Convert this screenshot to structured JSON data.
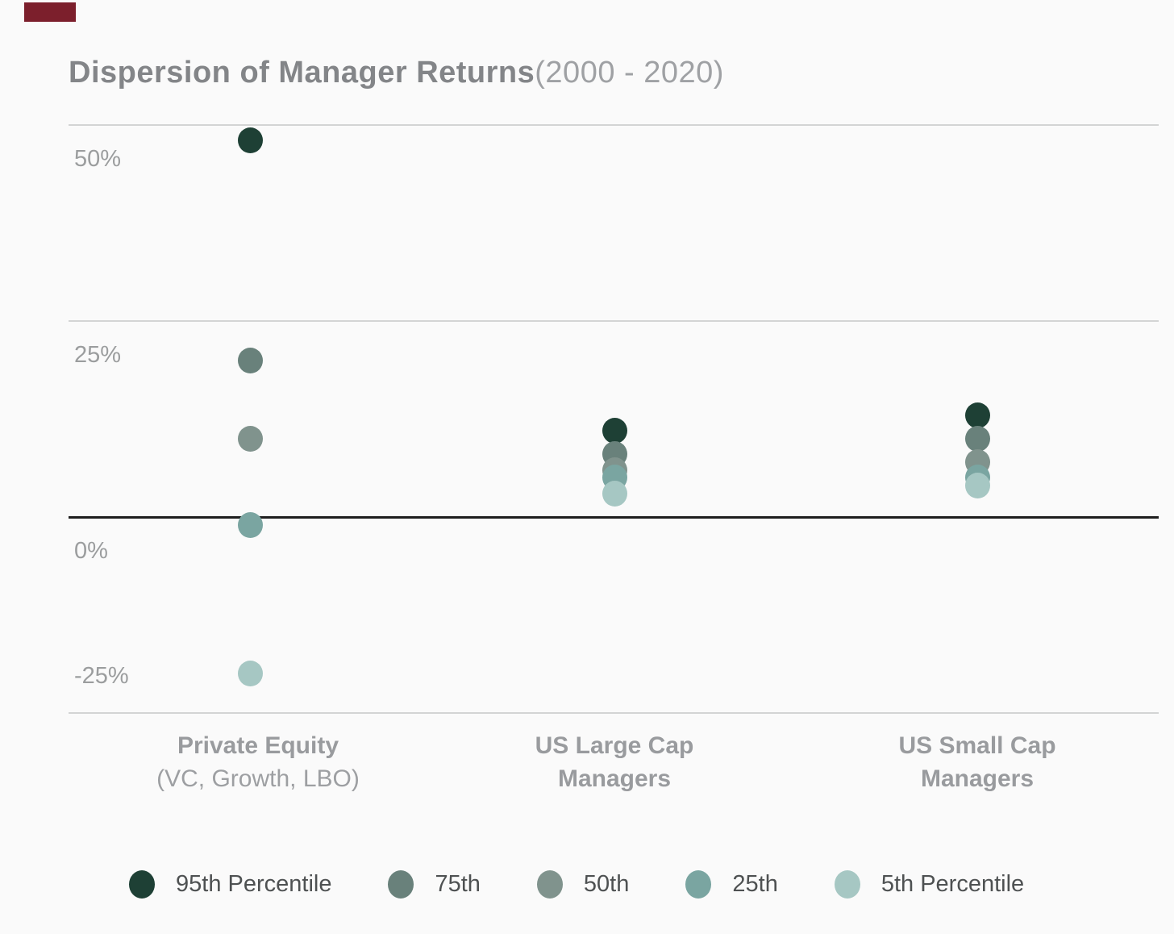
{
  "logo": {
    "name": "logo-fragment",
    "color": "#7c1f2c"
  },
  "title": {
    "main": "Dispersion of Manager Returns",
    "range": "(2000 - 2020)"
  },
  "chart_data": {
    "type": "scatter",
    "title": "Dispersion of Manager Returns (2000 - 2020)",
    "categories": [
      "Private Equity (VC, Growth, LBO)",
      "US Large Cap Managers",
      "US Small Cap Managers"
    ],
    "series": [
      {
        "name": "95th Percentile",
        "color": "#1e4035",
        "values": [
          48,
          11,
          13
        ]
      },
      {
        "name": "75th",
        "color": "#69817b",
        "values": [
          20,
          8,
          10
        ]
      },
      {
        "name": "50th",
        "color": "#80938d",
        "values": [
          10,
          6,
          7
        ]
      },
      {
        "name": "25th",
        "color": "#7aa5a1",
        "values": [
          -1,
          5,
          5
        ]
      },
      {
        "name": "5th Percentile",
        "color": "#a6c7c3",
        "values": [
          -20,
          3,
          4
        ]
      }
    ],
    "unit": "%",
    "y_ticks": [
      {
        "label": "50%",
        "value": 50
      },
      {
        "label": "25%",
        "value": 25
      },
      {
        "label": "0%",
        "value": 0
      },
      {
        "label": "-25%",
        "value": -25
      }
    ],
    "ylim": [
      -25,
      50
    ],
    "grid": "horizontal",
    "zero_line_emphasized": true,
    "legend_position": "bottom"
  },
  "category_labels": [
    {
      "line1": "Private Equity",
      "line2": "(VC, Growth, LBO)"
    },
    {
      "line1": "US Large Cap",
      "line2": "Managers"
    },
    {
      "line1": "US Small Cap",
      "line2": "Managers"
    }
  ],
  "colors": {
    "gridline": "#d3d4d4",
    "zero_line": "#1e1e1e",
    "title_main": "#838588",
    "title_range": "#9fa1a4",
    "axis_labels": "#9b9d9e",
    "category_labels": "#999b9e",
    "legend_labels": "#4e5152"
  }
}
